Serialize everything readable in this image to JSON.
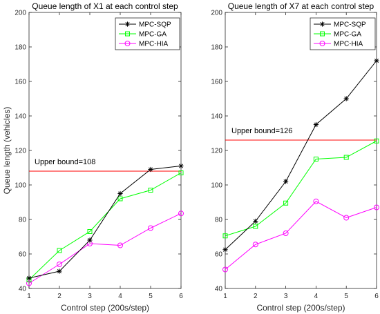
{
  "chart_data": [
    {
      "type": "line",
      "title": "Queue length of X1 at each control step",
      "xlabel": "Control step (200s/step)",
      "ylabel": "Queue length (vehicles)",
      "x": [
        1,
        2,
        3,
        4,
        5,
        6
      ],
      "xlim": [
        1,
        6
      ],
      "ylim": [
        40,
        200
      ],
      "xticks": [
        1,
        2,
        3,
        4,
        5,
        6
      ],
      "yticks": [
        40,
        60,
        80,
        100,
        120,
        140,
        160,
        180,
        200
      ],
      "grid": false,
      "legend_position": "top-right",
      "series": [
        {
          "name": "MPC-SQP",
          "color": "#000000",
          "marker": "asterisk",
          "values": [
            46,
            50,
            68,
            95,
            109,
            111
          ]
        },
        {
          "name": "MPC-GA",
          "color": "#00ff00",
          "marker": "square",
          "values": [
            45,
            62,
            73,
            92,
            97,
            107
          ]
        },
        {
          "name": "MPC-HIA",
          "color": "#ff00ff",
          "marker": "circle",
          "values": [
            43,
            54,
            66,
            65,
            75,
            83.5
          ]
        }
      ],
      "reference_line": {
        "label": "Upper bound=108",
        "y": 108,
        "color": "#ff0000"
      }
    },
    {
      "type": "line",
      "title": "Queue length of X7 at each control step",
      "xlabel": "Control step (200s/step)",
      "ylabel": "",
      "x": [
        1,
        2,
        3,
        4,
        5,
        6
      ],
      "xlim": [
        1,
        6
      ],
      "ylim": [
        40,
        200
      ],
      "xticks": [
        1,
        2,
        3,
        4,
        5,
        6
      ],
      "yticks": [
        40,
        60,
        80,
        100,
        120,
        140,
        160,
        180,
        200
      ],
      "grid": false,
      "legend_position": "top-right",
      "series": [
        {
          "name": "MPC-SQP",
          "color": "#000000",
          "marker": "asterisk",
          "values": [
            62.5,
            79,
            102,
            135,
            150,
            172
          ]
        },
        {
          "name": "MPC-GA",
          "color": "#00ff00",
          "marker": "square",
          "values": [
            70.5,
            76,
            89.5,
            115,
            116,
            125.5
          ]
        },
        {
          "name": "MPC-HIA",
          "color": "#ff00ff",
          "marker": "circle",
          "values": [
            51,
            65.5,
            72,
            90.5,
            81,
            87
          ]
        }
      ],
      "reference_line": {
        "label": "Upper bound=126",
        "y": 126,
        "color": "#ff0000"
      }
    }
  ]
}
